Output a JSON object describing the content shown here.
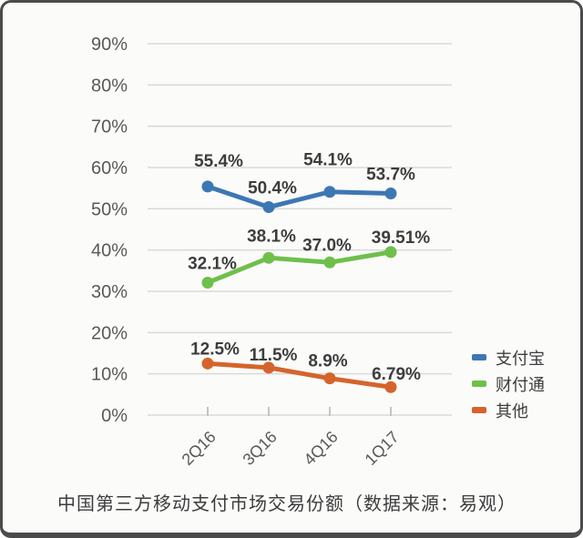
{
  "caption": "中国第三方移动支付市场交易份额（数据来源：易观）",
  "colors": {
    "frame_border": "#4b4b4b",
    "background": "#fbfbfa",
    "gridline": "#d9d9d9",
    "tick_mark": "#c4c4c4",
    "axis_text": "#595959",
    "data_label_text": "#3d3d3d",
    "legend_text": "#3d3d3d",
    "alipay_blue": "#3D77B3",
    "tenpay_green": "#6FBF4B",
    "others_orange": "#D4642B"
  },
  "chart_data": {
    "type": "line",
    "title": "中国第三方移动支付市场交易份额（数据来源：易观）",
    "categories": [
      "2Q16",
      "3Q16",
      "4Q16",
      "1Q17"
    ],
    "series": [
      {
        "name": "支付宝",
        "color": "#3D77B3",
        "values": [
          55.4,
          50.4,
          54.1,
          53.7
        ],
        "labels": [
          "55.4%",
          "50.4%",
          "54.1%",
          "53.7%"
        ]
      },
      {
        "name": "财付通",
        "color": "#6FBF4B",
        "values": [
          32.1,
          38.1,
          37.0,
          39.51
        ],
        "labels": [
          "32.1%",
          "38.1%",
          "37.0%",
          "39.51%"
        ]
      },
      {
        "name": "其他",
        "color": "#D4642B",
        "values": [
          12.5,
          11.5,
          8.9,
          6.79
        ],
        "labels": [
          "12.5%",
          "11.5%",
          "8.9%",
          "6.79%"
        ]
      }
    ],
    "y_axis": {
      "min": 0,
      "max": 90,
      "step": 10,
      "tick_labels": [
        "0%",
        "10%",
        "20%",
        "30%",
        "40%",
        "50%",
        "60%",
        "70%",
        "80%",
        "90%"
      ]
    },
    "x_axis": {
      "tick_labels": [
        "2Q16",
        "3Q16",
        "4Q16",
        "1Q17"
      ],
      "rotation_deg": -45
    },
    "grid": true,
    "legend": {
      "position": "right-bottom",
      "entries": [
        "支付宝",
        "财付通",
        "其他"
      ]
    }
  }
}
